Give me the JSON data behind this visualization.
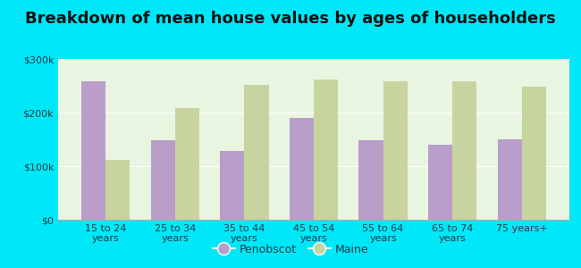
{
  "title": "Breakdown of mean house values by ages of householders",
  "categories": [
    "15 to 24\nyears",
    "25 to 34\nyears",
    "35 to 44\nyears",
    "45 to 54\nyears",
    "55 to 64\nyears",
    "65 to 74\nyears",
    "75 years+"
  ],
  "penobscot_values": [
    258000,
    148000,
    128000,
    190000,
    148000,
    140000,
    150000
  ],
  "maine_values": [
    112000,
    208000,
    252000,
    262000,
    258000,
    258000,
    248000
  ],
  "penobscot_color": "#b89ec8",
  "maine_color": "#c8d4a0",
  "background_color": "#e8f5e0",
  "outer_background": "#00e8f8",
  "ylim": [
    0,
    300000
  ],
  "yticks": [
    0,
    100000,
    200000,
    300000
  ],
  "ytick_labels": [
    "$0",
    "$100k",
    "$200k",
    "$300k"
  ],
  "legend_penobscot": "Penobscot",
  "legend_maine": "Maine",
  "title_fontsize": 13,
  "tick_fontsize": 8,
  "legend_fontsize": 9
}
